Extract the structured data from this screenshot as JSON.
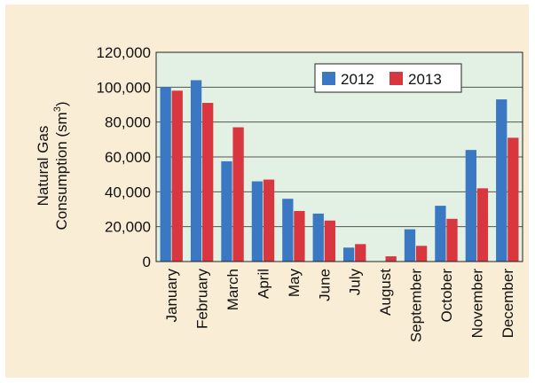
{
  "chart_data": {
    "type": "bar",
    "categories": [
      "January",
      "February",
      "March",
      "April",
      "May",
      "June",
      "July",
      "August",
      "September",
      "October",
      "November",
      "December"
    ],
    "series": [
      {
        "name": "2012",
        "color": "#3a78c4",
        "values": [
          100000,
          104000,
          57500,
          46000,
          36000,
          27500,
          8000,
          0,
          18500,
          32000,
          64000,
          93000
        ]
      },
      {
        "name": "2013",
        "color": "#d9373f",
        "values": [
          98000,
          91000,
          77000,
          47000,
          29000,
          23500,
          10000,
          3000,
          9000,
          24500,
          42000,
          71000
        ]
      }
    ],
    "ylabel_line1": "Natural Gas",
    "ylabel_line2": "Consumption (sm",
    "ylabel_sup": "3",
    "ylabel_end": ")",
    "ylim": [
      0,
      120000
    ],
    "yticks": [
      "0",
      "20,000",
      "40,000",
      "60,000",
      "80,000",
      "100,000",
      "120,000"
    ],
    "grid": true,
    "legend_position": "top-right",
    "plot_background": "#e2f1e4"
  }
}
